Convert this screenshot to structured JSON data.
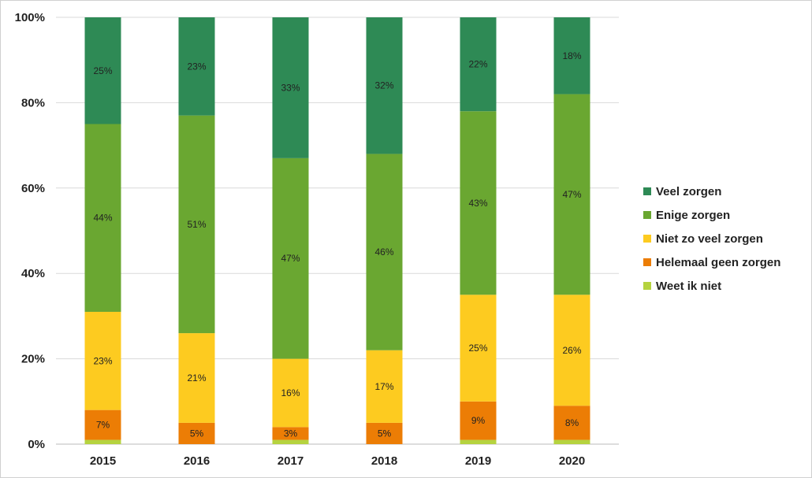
{
  "chart_data": {
    "type": "bar",
    "stacked": true,
    "title": "",
    "xlabel": "",
    "ylabel": "",
    "ylim": [
      0,
      100
    ],
    "yticks": [
      "0%",
      "20%",
      "40%",
      "60%",
      "80%",
      "100%"
    ],
    "categories": [
      "2015",
      "2016",
      "2017",
      "2018",
      "2019",
      "2020"
    ],
    "series": [
      {
        "name": "Weet ik niet",
        "color": "#b5d33f",
        "values": [
          1,
          0,
          1,
          0,
          1,
          1
        ],
        "labels": [
          "",
          "",
          "",
          "",
          "",
          ""
        ]
      },
      {
        "name": "Helemaal geen zorgen",
        "color": "#ec7d05",
        "values": [
          7,
          5,
          3,
          5,
          9,
          8
        ],
        "labels": [
          "7%",
          "5%",
          "3%",
          "5%",
          "9%",
          "8%"
        ]
      },
      {
        "name": "Niet zo veel zorgen",
        "color": "#fdcb20",
        "values": [
          23,
          21,
          16,
          17,
          25,
          26
        ],
        "labels": [
          "23%",
          "21%",
          "16%",
          "17%",
          "25%",
          "26%"
        ]
      },
      {
        "name": "Enige zorgen",
        "color": "#6aa731",
        "values": [
          44,
          51,
          47,
          46,
          43,
          47
        ],
        "labels": [
          "44%",
          "51%",
          "47%",
          "46%",
          "43%",
          "47%"
        ]
      },
      {
        "name": "Veel zorgen",
        "color": "#2e8a55",
        "values": [
          25,
          23,
          33,
          32,
          22,
          18
        ],
        "labels": [
          "25%",
          "23%",
          "33%",
          "32%",
          "22%",
          "18%"
        ]
      }
    ],
    "legend_order": [
      "Veel zorgen",
      "Enige zorgen",
      "Niet zo veel zorgen",
      "Helemaal geen zorgen",
      "Weet ik niet"
    ],
    "legend_position": "right",
    "grid": true
  }
}
